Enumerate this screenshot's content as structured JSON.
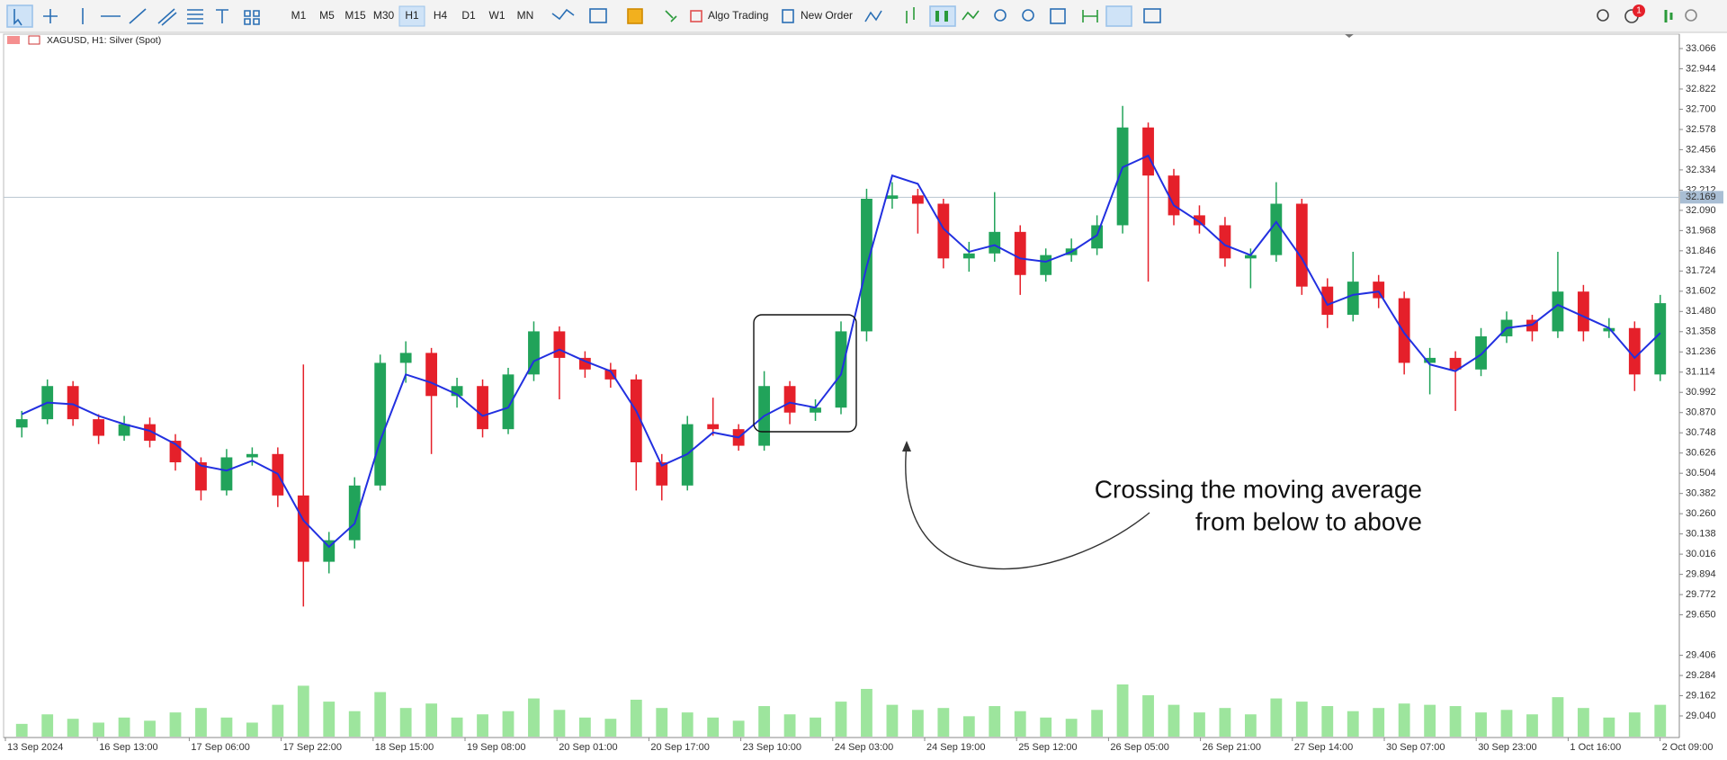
{
  "toolbar": {
    "timeframes": [
      "M1",
      "M5",
      "M15",
      "M30",
      "H1",
      "H4",
      "D1",
      "W1",
      "MN"
    ],
    "active_timeframe": "H1",
    "algo_trading": "Algo Trading",
    "new_order": "New Order",
    "badge": "1"
  },
  "chart": {
    "header": "XAGUSD, H1:  Silver (Spot)",
    "price_ticks": [
      {
        "value": 33.066,
        "label": "33.066"
      },
      {
        "value": 32.944,
        "label": "32.944"
      },
      {
        "value": 32.822,
        "label": "32.822"
      },
      {
        "value": 32.7,
        "label": "32.700"
      },
      {
        "value": 32.578,
        "label": "32.578"
      },
      {
        "value": 32.456,
        "label": "32.456"
      },
      {
        "value": 32.334,
        "label": "32.334"
      },
      {
        "value": 32.212,
        "label": "32.212"
      },
      {
        "value": 32.09,
        "label": "32.090"
      },
      {
        "value": 31.968,
        "label": "31.968"
      },
      {
        "value": 31.846,
        "label": "31.846"
      },
      {
        "value": 31.724,
        "label": "31.724"
      },
      {
        "value": 31.602,
        "label": "31.602"
      },
      {
        "value": 31.48,
        "label": "31.480"
      },
      {
        "value": 31.358,
        "label": "31.358"
      },
      {
        "value": 31.236,
        "label": "31.236"
      },
      {
        "value": 31.114,
        "label": "31.114"
      },
      {
        "value": 30.992,
        "label": "30.992"
      },
      {
        "value": 30.87,
        "label": "30.870"
      },
      {
        "value": 30.748,
        "label": "30.748"
      },
      {
        "value": 30.626,
        "label": "30.626"
      },
      {
        "value": 30.504,
        "label": "30.504"
      },
      {
        "value": 30.382,
        "label": "30.382"
      },
      {
        "value": 30.26,
        "label": "30.260"
      },
      {
        "value": 30.138,
        "label": "30.138"
      },
      {
        "value": 30.016,
        "label": "30.016"
      },
      {
        "value": 29.894,
        "label": "29.894"
      },
      {
        "value": 29.772,
        "label": "29.772"
      },
      {
        "value": 29.65,
        "label": "29.650"
      },
      {
        "value": 29.406,
        "label": "29.406"
      },
      {
        "value": 29.284,
        "label": "29.284"
      },
      {
        "value": 29.162,
        "label": "29.162"
      },
      {
        "value": 29.04,
        "label": "29.040"
      }
    ],
    "current_price": 32.169,
    "time_labels": [
      "13 Sep 2024",
      "16 Sep 13:00",
      "17 Sep 06:00",
      "17 Sep 22:00",
      "18 Sep 15:00",
      "19 Sep 08:00",
      "20 Sep 01:00",
      "20 Sep 17:00",
      "23 Sep 10:00",
      "24 Sep 03:00",
      "24 Sep 19:00",
      "25 Sep 12:00",
      "26 Sep 05:00",
      "26 Sep 21:00",
      "27 Sep 14:00",
      "30 Sep 07:00",
      "30 Sep 23:00",
      "1 Oct 16:00",
      "2 Oct 09:00"
    ],
    "candles": [
      [
        30.78,
        30.88,
        30.72,
        30.83
      ],
      [
        30.83,
        31.07,
        30.8,
        31.03
      ],
      [
        31.03,
        31.06,
        30.79,
        30.83
      ],
      [
        30.83,
        30.86,
        30.68,
        30.73
      ],
      [
        30.73,
        30.85,
        30.7,
        30.8
      ],
      [
        30.8,
        30.84,
        30.66,
        30.7
      ],
      [
        30.7,
        30.74,
        30.52,
        30.57
      ],
      [
        30.57,
        30.6,
        30.34,
        30.4
      ],
      [
        30.4,
        30.65,
        30.37,
        30.6
      ],
      [
        30.6,
        30.66,
        30.55,
        30.62
      ],
      [
        30.62,
        30.66,
        30.3,
        30.37
      ],
      [
        30.37,
        31.16,
        29.7,
        29.97
      ],
      [
        29.97,
        30.15,
        29.9,
        30.1
      ],
      [
        30.1,
        30.48,
        30.05,
        30.43
      ],
      [
        30.43,
        31.22,
        30.4,
        31.17
      ],
      [
        31.17,
        31.3,
        31.05,
        31.23
      ],
      [
        31.23,
        31.26,
        30.62,
        30.97
      ],
      [
        30.97,
        31.08,
        30.9,
        31.03
      ],
      [
        31.03,
        31.07,
        30.72,
        30.77
      ],
      [
        30.77,
        31.14,
        30.74,
        31.1
      ],
      [
        31.1,
        31.42,
        31.06,
        31.36
      ],
      [
        31.36,
        31.39,
        30.95,
        31.2
      ],
      [
        31.2,
        31.24,
        31.08,
        31.13
      ],
      [
        31.13,
        31.17,
        31.02,
        31.07
      ],
      [
        31.07,
        31.1,
        30.4,
        30.57
      ],
      [
        30.57,
        30.62,
        30.34,
        30.43
      ],
      [
        30.43,
        30.85,
        30.4,
        30.8
      ],
      [
        30.8,
        30.96,
        30.73,
        30.77
      ],
      [
        30.77,
        30.8,
        30.64,
        30.67
      ],
      [
        30.67,
        31.12,
        30.64,
        31.03
      ],
      [
        31.03,
        31.06,
        30.8,
        30.87
      ],
      [
        30.87,
        30.95,
        30.82,
        30.9
      ],
      [
        30.9,
        31.42,
        30.86,
        31.36
      ],
      [
        31.36,
        32.22,
        31.3,
        32.16
      ],
      [
        32.16,
        32.26,
        32.1,
        32.18
      ],
      [
        32.18,
        32.22,
        31.95,
        32.13
      ],
      [
        32.13,
        32.16,
        31.74,
        31.8
      ],
      [
        31.8,
        31.9,
        31.72,
        31.83
      ],
      [
        31.83,
        32.2,
        31.78,
        31.96
      ],
      [
        31.96,
        32.0,
        31.58,
        31.7
      ],
      [
        31.7,
        31.86,
        31.66,
        31.82
      ],
      [
        31.82,
        31.92,
        31.78,
        31.86
      ],
      [
        31.86,
        32.06,
        31.82,
        32.0
      ],
      [
        32.0,
        32.72,
        31.95,
        32.59
      ],
      [
        32.59,
        32.62,
        31.66,
        32.3
      ],
      [
        32.3,
        32.34,
        32.0,
        32.06
      ],
      [
        32.06,
        32.12,
        31.95,
        32.0
      ],
      [
        32.0,
        32.05,
        31.75,
        31.8
      ],
      [
        31.8,
        31.86,
        31.62,
        31.82
      ],
      [
        31.82,
        32.26,
        31.78,
        32.13
      ],
      [
        32.13,
        32.16,
        31.58,
        31.63
      ],
      [
        31.63,
        31.68,
        31.38,
        31.46
      ],
      [
        31.46,
        31.84,
        31.42,
        31.66
      ],
      [
        31.66,
        31.7,
        31.5,
        31.56
      ],
      [
        31.56,
        31.6,
        31.1,
        31.17
      ],
      [
        31.17,
        31.26,
        30.98,
        31.2
      ],
      [
        31.2,
        31.24,
        30.88,
        31.13
      ],
      [
        31.13,
        31.38,
        31.09,
        31.33
      ],
      [
        31.33,
        31.48,
        31.29,
        31.43
      ],
      [
        31.43,
        31.46,
        31.3,
        31.36
      ],
      [
        31.36,
        31.84,
        31.32,
        31.6
      ],
      [
        31.6,
        31.64,
        31.3,
        31.36
      ],
      [
        31.36,
        31.44,
        31.32,
        31.38
      ],
      [
        31.38,
        31.42,
        31.0,
        31.1
      ],
      [
        31.1,
        31.58,
        31.06,
        31.53
      ]
    ],
    "ma": [
      30.86,
      30.93,
      30.92,
      30.85,
      30.8,
      30.76,
      30.68,
      30.55,
      30.52,
      30.58,
      30.5,
      30.22,
      30.06,
      30.2,
      30.7,
      31.1,
      31.05,
      30.98,
      30.85,
      30.9,
      31.18,
      31.25,
      31.18,
      31.12,
      30.88,
      30.55,
      30.62,
      30.75,
      30.72,
      30.85,
      30.93,
      30.9,
      31.1,
      31.75,
      32.3,
      32.25,
      31.98,
      31.84,
      31.88,
      31.8,
      31.78,
      31.84,
      31.94,
      32.35,
      32.42,
      32.12,
      32.02,
      31.88,
      31.82,
      32.02,
      31.8,
      31.52,
      31.58,
      31.6,
      31.35,
      31.16,
      31.12,
      31.22,
      31.38,
      31.4,
      31.52,
      31.45,
      31.38,
      31.2,
      31.35
    ],
    "volumes": [
      20,
      35,
      28,
      22,
      30,
      25,
      38,
      45,
      30,
      22,
      50,
      80,
      55,
      40,
      70,
      45,
      52,
      30,
      35,
      40,
      60,
      42,
      30,
      28,
      58,
      45,
      38,
      30,
      25,
      48,
      35,
      30,
      55,
      75,
      50,
      42,
      45,
      32,
      48,
      40,
      30,
      28,
      42,
      82,
      65,
      50,
      38,
      45,
      35,
      60,
      55,
      48,
      40,
      45,
      52,
      50,
      48,
      38,
      42,
      35,
      62,
      45,
      30,
      38,
      50
    ],
    "annotation": [
      "Crossing the moving average",
      "from below to above"
    ],
    "colors": {
      "up": "#21a35a",
      "down": "#e5202a",
      "ma": "#2230e0",
      "volume": "#9de59d"
    }
  }
}
